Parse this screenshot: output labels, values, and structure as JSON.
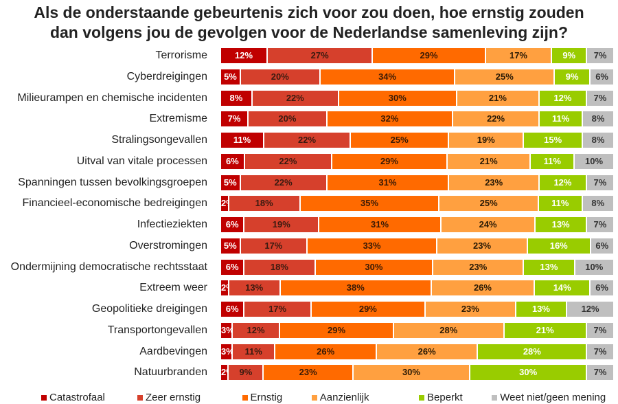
{
  "chart_data": {
    "type": "bar",
    "orientation": "horizontal",
    "stacked": "100%",
    "title": "Als de onderstaande gebeurtenis zich voor zou doen, hoe ernstig zouden dan volgens jou de gevolgen voor de Nederlandse samenleving zijn?",
    "title_lines": [
      "Als de onderstaande gebeurtenis zich voor zou doen, hoe ernstig zouden",
      "dan volgens jou de gevolgen voor de Nederlandse samenleving zijn?"
    ],
    "categories": [
      "Terrorisme",
      "Cyberdreigingen",
      "Milieurampen en chemische incidenten",
      "Extremisme",
      "Stralingsongevallen",
      "Uitval van vitale processen",
      "Spanningen tussen bevolkingsgroepen",
      "Financieel-economische bedreigingen",
      "Infectieziekten",
      "Overstromingen",
      "Ondermijning democratische rechtsstaat",
      "Extreem weer",
      "Geopolitieke dreigingen",
      "Transportongevallen",
      "Aardbevingen",
      "Natuurbranden"
    ],
    "series": [
      {
        "name": "Catastrofaal",
        "color": "#C00000",
        "text_color": "#ffffff",
        "values": [
          12,
          5,
          8,
          7,
          11,
          6,
          5,
          2,
          6,
          5,
          6,
          2,
          6,
          3,
          3,
          2
        ]
      },
      {
        "name": "Zeer ernstig",
        "color": "#D6402C",
        "text_color": "#3a1a10",
        "values": [
          27,
          20,
          22,
          20,
          22,
          22,
          22,
          18,
          19,
          17,
          18,
          13,
          17,
          12,
          11,
          9
        ]
      },
      {
        "name": "Ernstig",
        "color": "#FF6A00",
        "text_color": "#3a1a05",
        "values": [
          29,
          34,
          30,
          32,
          25,
          29,
          31,
          35,
          31,
          33,
          30,
          38,
          29,
          29,
          26,
          23
        ]
      },
      {
        "name": "Aanzienlijk",
        "color": "#FFA040",
        "text_color": "#2a1a05",
        "values": [
          17,
          25,
          21,
          22,
          19,
          21,
          23,
          25,
          24,
          23,
          23,
          26,
          23,
          28,
          26,
          30
        ]
      },
      {
        "name": "Beperkt",
        "color": "#99CC00",
        "text_color": "#ffffff",
        "values": [
          9,
          9,
          12,
          11,
          15,
          11,
          12,
          11,
          13,
          16,
          13,
          14,
          13,
          21,
          28,
          30
        ]
      },
      {
        "name": "Weet niet/geen mening",
        "color": "#BFBFBF",
        "text_color": "#333333",
        "values": [
          7,
          6,
          7,
          8,
          8,
          10,
          7,
          8,
          7,
          6,
          10,
          6,
          12,
          7,
          7,
          7
        ]
      }
    ],
    "value_format": "{v}%",
    "legend": "bottom",
    "grid": false
  }
}
